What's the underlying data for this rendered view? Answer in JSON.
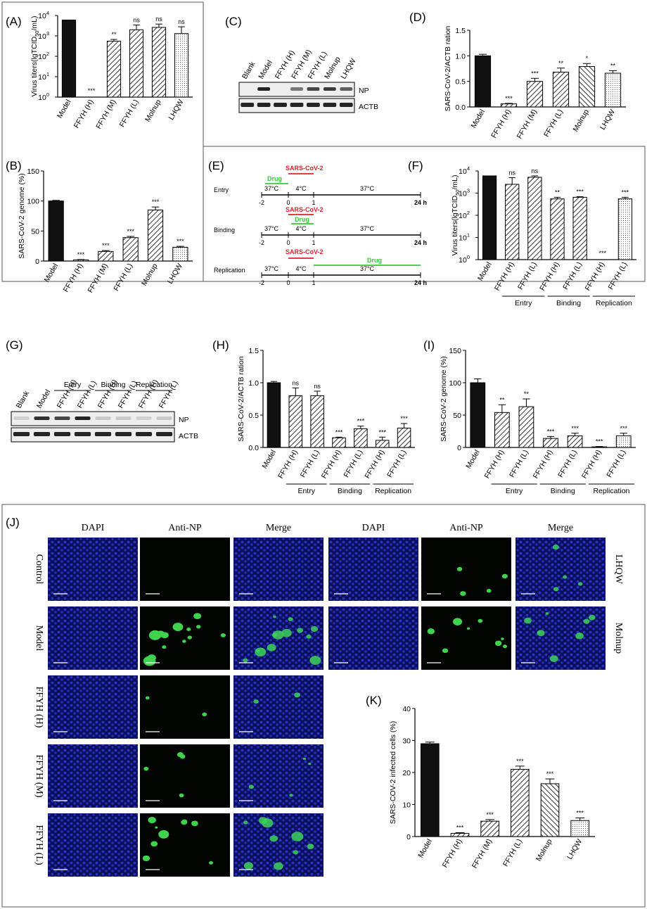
{
  "panel_labels": [
    "(A)",
    "(B)",
    "(C)",
    "(D)",
    "(E)",
    "(F)",
    "(G)",
    "(H)",
    "(I)",
    "(J)",
    "(K)"
  ],
  "chart_data": [
    {
      "panel": "A",
      "type": "bar",
      "log": true,
      "ylim": [
        1,
        10000
      ],
      "ylabel": "Virus titers(lgTCID50/mL)",
      "categories": [
        "Model",
        "FFYH (H)",
        "FFYH (M)",
        "FFYH (L)",
        "Molnup",
        "LHQW"
      ],
      "values": [
        6000,
        1,
        550,
        2000,
        2600,
        1300
      ],
      "errors": [
        0,
        0,
        120,
        1400,
        1200,
        1500
      ],
      "sig": [
        "",
        "***",
        "**",
        "ns",
        "ns",
        "ns"
      ],
      "patterns": [
        "solid",
        "none",
        "hatch",
        "hatch",
        "hatch",
        "dots"
      ]
    },
    {
      "panel": "B",
      "type": "bar",
      "ylim": [
        0,
        150
      ],
      "ylabel": "SARS-CoV-2 genome (%)",
      "categories": [
        "Model",
        "FFYH (H)",
        "FFYH (M)",
        "FFYH (L)",
        "Molnup",
        "LHQW"
      ],
      "values": [
        100,
        2,
        16,
        39,
        85,
        23
      ],
      "errors": [
        1,
        0.5,
        1.5,
        2,
        5,
        1.5
      ],
      "sig": [
        "",
        "***",
        "***",
        "***",
        "***",
        "***"
      ],
      "patterns": [
        "solid",
        "hatch",
        "hatch",
        "hatch",
        "hatch",
        "dots"
      ]
    },
    {
      "panel": "D",
      "type": "bar",
      "ylim": [
        0,
        1.5
      ],
      "ylabel": "SARS-CoV-2/ACTB ration",
      "categories": [
        "Model",
        "FFYH (H)",
        "FFYH (M)",
        "FFYH (L)",
        "Molnup",
        "LHQW"
      ],
      "values": [
        1.0,
        0.06,
        0.5,
        0.68,
        0.79,
        0.66
      ],
      "errors": [
        0.03,
        0.01,
        0.06,
        0.08,
        0.06,
        0.05
      ],
      "sig": [
        "",
        "***",
        "***",
        "**",
        "*",
        "**"
      ],
      "patterns": [
        "solid",
        "hatch",
        "hatch",
        "hatch",
        "hatchb",
        "dots"
      ]
    },
    {
      "panel": "F",
      "type": "bar",
      "log": true,
      "ylim": [
        1,
        10000
      ],
      "ylabel": "Virus titers(lgTCID50/mL)",
      "categories": [
        "Model",
        "FFYH (H)",
        "FFYH (L)",
        "FFYH (H)",
        "FFYH (L)",
        "FFYH (H)",
        "FFYH (L)"
      ],
      "values": [
        6000,
        2500,
        5200,
        550,
        650,
        1,
        550
      ],
      "errors": [
        0,
        2500,
        800,
        100,
        40,
        0,
        100
      ],
      "sig": [
        "",
        "ns",
        "ns",
        "**",
        "***",
        "***",
        "***"
      ],
      "patterns": [
        "solid",
        "hatch",
        "hatch",
        "hatch",
        "hatch",
        "none",
        "dots"
      ],
      "groups": [
        {
          "label": "Entry",
          "from": 1,
          "to": 2
        },
        {
          "label": "Binding",
          "from": 3,
          "to": 4
        },
        {
          "label": "Replication",
          "from": 5,
          "to": 6
        }
      ]
    },
    {
      "panel": "H",
      "type": "bar",
      "ylim": [
        0,
        1.5
      ],
      "ylabel": "SARS-CoV-2/ACTB ration",
      "categories": [
        "Model",
        "FFYH (H)",
        "FFYH (L)",
        "FFYH (H)",
        "FFYH (L)",
        "FFYH (H)",
        "FFYH (L)"
      ],
      "values": [
        1.0,
        0.8,
        0.8,
        0.15,
        0.29,
        0.11,
        0.3
      ],
      "errors": [
        0.02,
        0.12,
        0.07,
        0.01,
        0.04,
        0.05,
        0.07
      ],
      "sig": [
        "",
        "ns",
        "ns",
        "***",
        "***",
        "***",
        "***"
      ],
      "patterns": [
        "solid",
        "hatch",
        "hatch",
        "hatch",
        "hatch",
        "hatch",
        "hatch"
      ],
      "groups": [
        {
          "label": "Entry",
          "from": 1,
          "to": 2
        },
        {
          "label": "Binding",
          "from": 3,
          "to": 4
        },
        {
          "label": "Replication",
          "from": 5,
          "to": 6
        }
      ]
    },
    {
      "panel": "I",
      "type": "bar",
      "ylim": [
        0,
        150
      ],
      "ylabel": "SARS-CoV-2 genome (%)",
      "categories": [
        "Model",
        "FFYH (H)",
        "FFYH (L)",
        "FFYH (H)",
        "FFYH (L)",
        "FFYH (H)",
        "FFYH (L)"
      ],
      "values": [
        100,
        54,
        63,
        14,
        18,
        1,
        18
      ],
      "errors": [
        6,
        12,
        12,
        3,
        4,
        0.5,
        4
      ],
      "sig": [
        "",
        "**",
        "**",
        "***",
        "***",
        "***",
        "***"
      ],
      "patterns": [
        "solid",
        "hatch",
        "hatch",
        "hatch",
        "hatch",
        "hatch",
        "dots"
      ],
      "groups": [
        {
          "label": "Entry",
          "from": 1,
          "to": 2
        },
        {
          "label": "Binding",
          "from": 3,
          "to": 4
        },
        {
          "label": "Replication",
          "from": 5,
          "to": 6
        }
      ]
    },
    {
      "panel": "K",
      "type": "bar",
      "ylim": [
        0,
        40
      ],
      "ylabel": "SARS-COV-2 infected cells (%)",
      "categories": [
        "Model",
        "FFYH (H)",
        "FFYH (M)",
        "FFYH (L)",
        "Molnup",
        "LHQW"
      ],
      "values": [
        29,
        1,
        4.8,
        21,
        16.5,
        5
      ],
      "errors": [
        0.5,
        0.2,
        0.5,
        1,
        1.5,
        0.8
      ],
      "sig": [
        "",
        "***",
        "***",
        "***",
        "***",
        "***"
      ],
      "patterns": [
        "solid",
        "hatch",
        "hatch",
        "hatch",
        "hatchb",
        "dots"
      ]
    }
  ],
  "blot_c": {
    "lanes": [
      "Blank",
      "Model",
      "FFYH (H)",
      "FFYH (M)",
      "FFYH (L)",
      "Molnup",
      "LHQW"
    ],
    "bands": [
      "NP",
      "ACTB"
    ]
  },
  "blot_g": {
    "lanes": [
      "Blank",
      "Model",
      "FFYH (H)",
      "FFYH (L)",
      "FFYH (H)",
      "FFYH (L)",
      "FFYH (H)",
      "FFYH (L)"
    ],
    "bands": [
      "NP",
      "ACTB"
    ],
    "groups": [
      "Entry",
      "Binding",
      "Replication"
    ]
  },
  "schematic": {
    "rows": [
      {
        "label": "Entry",
        "virus": "SARS-CoV-2",
        "drug": "Drug"
      },
      {
        "label": "Binding",
        "virus": "SARS-CoV-2",
        "drug": "Drug"
      },
      {
        "label": "Replication",
        "virus": "SARS-CoV-2",
        "drug": "Drug"
      }
    ],
    "ticks": [
      "-2",
      "0",
      "1",
      "24 h"
    ],
    "temps": [
      "37°C",
      "4°C",
      "37°C"
    ],
    "colors": {
      "virus": "#e0202a",
      "drug": "#33cc33"
    }
  },
  "micrographs": {
    "columns": [
      "DAPI",
      "Anti-NP",
      "Merge"
    ],
    "rows_left": [
      "Control",
      "Model",
      "FFYH (H)",
      "FFYH (M)",
      "FFYH (L)"
    ],
    "rows_right": [
      "LHQW",
      "Molnup"
    ],
    "infection_fraction": {
      "Control": 0,
      "Model": 0.3,
      "FFYH (H)": 0.02,
      "FFYH (M)": 0.07,
      "FFYH (L)": 0.2,
      "LHQW": 0.07,
      "Molnup": 0.17
    }
  }
}
